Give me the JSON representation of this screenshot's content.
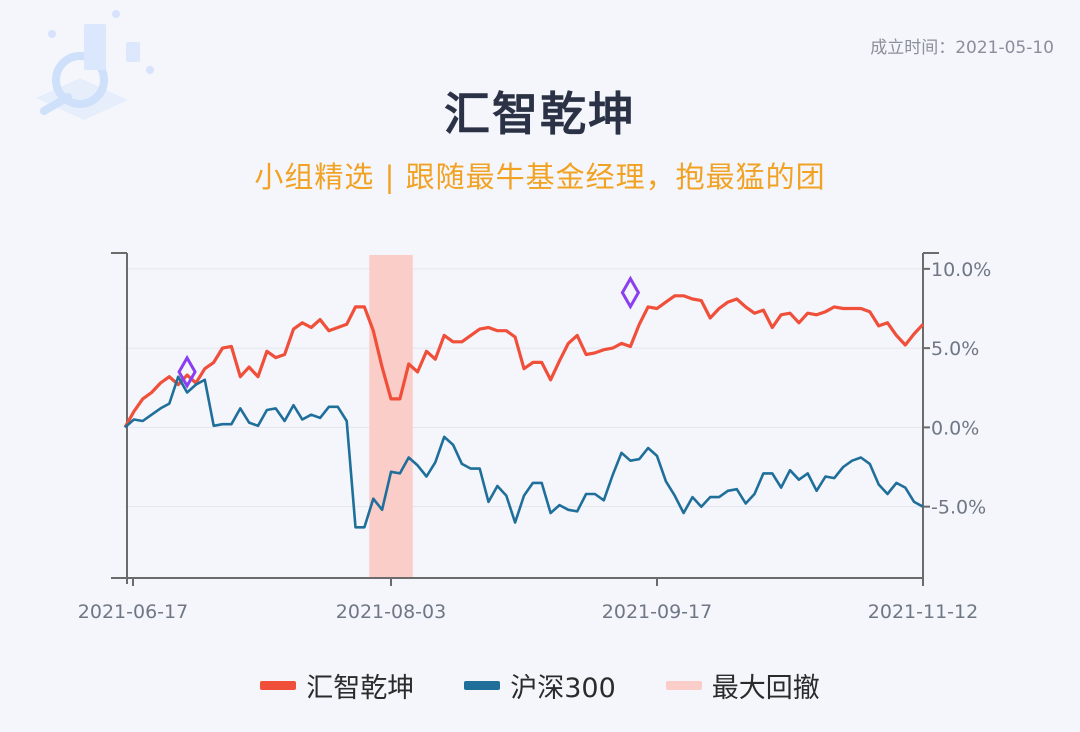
{
  "founded": "成立时间：2021-05-10",
  "title": "汇智乾坤",
  "subtitle": "小组精选 | 跟随最牛基金经理，抱最猛的团",
  "colors": {
    "fund": "#f04f3a",
    "index": "#1f6f9a",
    "drawdown": "#fbcdc8",
    "marker": "#8a3ff0",
    "axis": "#6b6b6b"
  },
  "chart_data": {
    "type": "line",
    "ylim": [
      -9.5,
      11
    ],
    "y_ticks": [
      10,
      5,
      0,
      -5
    ],
    "y_tick_labels": [
      "10.0%",
      "5.0%",
      "0.0%",
      "-5.0%"
    ],
    "x_tick_labels": [
      "2021-06-17",
      "2021-08-03",
      "2021-09-17",
      "2021-11-12"
    ],
    "x_tick_positions": [
      0,
      30,
      60,
      90
    ],
    "n_points": 91,
    "series": [
      {
        "name": "汇智乾坤",
        "color": "#f04f3a",
        "values": [
          0,
          1,
          1.8,
          2.2,
          2.8,
          3.2,
          2.7,
          3.3,
          2.8,
          3.7,
          4.1,
          5,
          5.1,
          3.2,
          3.8,
          3.2,
          4.8,
          4.4,
          4.6,
          6.2,
          6.6,
          6.3,
          6.8,
          6.1,
          6.3,
          6.5,
          7.6,
          7.6,
          6.1,
          3.8,
          1.8,
          1.8,
          4,
          3.5,
          4.8,
          4.3,
          5.8,
          5.4,
          5.4,
          5.8,
          6.2,
          6.3,
          6.1,
          6.1,
          5.7,
          3.7,
          4.1,
          4.1,
          3,
          4.2,
          5.3,
          5.8,
          4.6,
          4.7,
          4.9,
          5,
          5.3,
          5.1,
          6.5,
          7.6,
          7.5,
          7.9,
          8.3,
          8.3,
          8.1,
          8,
          6.9,
          7.5,
          7.9,
          8.1,
          7.6,
          7.2,
          7.4,
          6.3,
          7.1,
          7.2,
          6.6,
          7.2,
          7.1,
          7.3,
          7.6,
          7.5,
          7.5,
          7.5,
          7.3,
          6.4,
          6.6,
          5.8,
          5.2,
          5.9,
          6.5
        ]
      },
      {
        "name": "沪深300",
        "color": "#1f6f9a",
        "values": [
          0,
          0.5,
          0.4,
          0.8,
          1.2,
          1.5,
          3.2,
          2.2,
          2.7,
          3,
          0.1,
          0.2,
          0.2,
          1.2,
          0.3,
          0.1,
          1.1,
          1.2,
          0.4,
          1.4,
          0.5,
          0.8,
          0.6,
          1.3,
          1.3,
          0.4,
          -6.3,
          -6.3,
          -4.5,
          -5.2,
          -2.8,
          -2.9,
          -1.9,
          -2.4,
          -3.1,
          -2.2,
          -0.6,
          -1.1,
          -2.3,
          -2.6,
          -2.6,
          -4.7,
          -3.7,
          -4.3,
          -6,
          -4.3,
          -3.5,
          -3.5,
          -5.4,
          -4.9,
          -5.2,
          -5.3,
          -4.2,
          -4.2,
          -4.6,
          -3,
          -1.6,
          -2.1,
          -2,
          -1.3,
          -1.8,
          -3.4,
          -4.3,
          -5.4,
          -4.4,
          -5,
          -4.4,
          -4.4,
          -4,
          -3.9,
          -4.8,
          -4.2,
          -2.9,
          -2.9,
          -3.8,
          -2.7,
          -3.3,
          -2.9,
          -4,
          -3.1,
          -3.2,
          -2.5,
          -2.1,
          -1.9,
          -2.3,
          -3.6,
          -4.2,
          -3.5,
          -3.8,
          -4.7,
          -5
        ]
      }
    ],
    "max_drawdown": {
      "label": "最大回撤",
      "start_index": 28,
      "end_index": 32
    },
    "markers": [
      {
        "index": 7,
        "value": 3.5
      },
      {
        "index": 57,
        "value": 8.5
      }
    ]
  },
  "legend": [
    {
      "label": "汇智乾坤",
      "color": "#f04f3a"
    },
    {
      "label": "沪深300",
      "color": "#1f6f9a"
    },
    {
      "label": "最大回撤",
      "color": "#fbcdc8"
    }
  ]
}
